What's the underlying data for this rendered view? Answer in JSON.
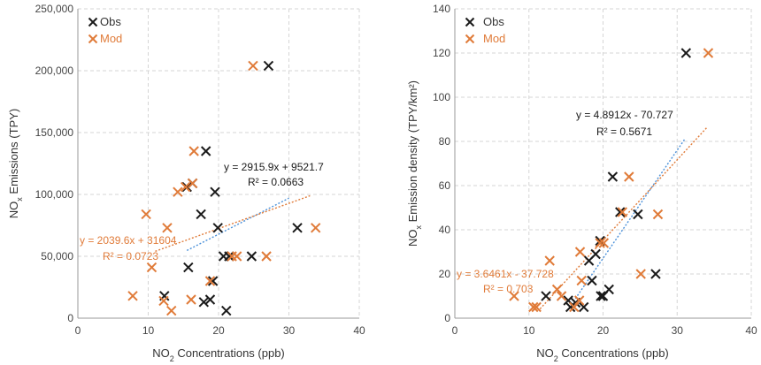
{
  "chart_data": [
    {
      "type": "scatter",
      "xlabel": {
        "pre": "NO",
        "sub": "2",
        "post": " Concentrations (ppb)"
      },
      "ylabel": {
        "pre": "NO",
        "sub": "x",
        "post": " Emissions (TPY)"
      },
      "xlim": [
        0,
        40
      ],
      "ylim": [
        0,
        250000
      ],
      "xticks": [
        0,
        10,
        20,
        30,
        40
      ],
      "xtick_labels": [
        "0",
        "10",
        "20",
        "30",
        "40"
      ],
      "yticks": [
        0,
        50000,
        100000,
        150000,
        200000,
        250000
      ],
      "ytick_labels": [
        "0",
        "50,000",
        "100,000",
        "150,000",
        "200,000",
        "250,000"
      ],
      "grid": true,
      "legend_position": "top-left",
      "series": [
        {
          "name": "Obs",
          "color": "#1a1a1a",
          "marker": "x",
          "points": [
            [
              12.3,
              18000
            ],
            [
              15.5,
              106000
            ],
            [
              15.7,
              41000
            ],
            [
              16.3,
              109000
            ],
            [
              17.5,
              84000
            ],
            [
              17.9,
              13000
            ],
            [
              18.2,
              135000
            ],
            [
              18.8,
              15000
            ],
            [
              19.2,
              30000
            ],
            [
              19.5,
              102000
            ],
            [
              19.9,
              73000
            ],
            [
              20.7,
              50000
            ],
            [
              21.1,
              6000
            ],
            [
              21.5,
              50000
            ],
            [
              24.7,
              50000
            ],
            [
              27.1,
              204000
            ],
            [
              31.2,
              73000
            ]
          ],
          "trendline": {
            "slope": 2915.9,
            "intercept": 9521.7,
            "x_range": [
              15.5,
              30
            ],
            "equation": "y = 2915.9x + 9521.7",
            "r2": "R² = 0.0663"
          }
        },
        {
          "name": "Mod",
          "color": "#e07b39",
          "marker": "x",
          "points": [
            [
              7.8,
              18000
            ],
            [
              9.7,
              84000
            ],
            [
              10.5,
              41000
            ],
            [
              12.2,
              14000
            ],
            [
              12.7,
              73000
            ],
            [
              13.3,
              6000
            ],
            [
              14.2,
              102000
            ],
            [
              15.3,
              106000
            ],
            [
              16.1,
              15000
            ],
            [
              16.3,
              109000
            ],
            [
              16.5,
              135000
            ],
            [
              18.8,
              30000
            ],
            [
              21.9,
              50000
            ],
            [
              22.6,
              50000
            ],
            [
              24.9,
              204000
            ],
            [
              26.8,
              50000
            ],
            [
              33.8,
              73000
            ]
          ],
          "trendline": {
            "slope": 2039.6,
            "intercept": 31604,
            "x_range": [
              11,
              33
            ],
            "equation": "y = 2039.6x + 31604",
            "r2": "R² = 0.0723"
          }
        }
      ]
    },
    {
      "type": "scatter",
      "xlabel": {
        "pre": "NO",
        "sub": "2",
        "post": " Concentrations (ppb)"
      },
      "ylabel": {
        "pre": "NO",
        "sub": "x",
        "post": " Emission density (TPY/km²)"
      },
      "xlim": [
        0,
        40
      ],
      "ylim": [
        0,
        140
      ],
      "xticks": [
        0,
        10,
        20,
        30,
        40
      ],
      "xtick_labels": [
        "0",
        "10",
        "20",
        "30",
        "40"
      ],
      "yticks": [
        0,
        20,
        40,
        60,
        80,
        100,
        120,
        140
      ],
      "ytick_labels": [
        "0",
        "20",
        "40",
        "60",
        "80",
        "100",
        "120",
        "140"
      ],
      "grid": true,
      "legend_position": "top-left",
      "series": [
        {
          "name": "Obs",
          "color": "#1a1a1a",
          "marker": "x",
          "points": [
            [
              12.3,
              10
            ],
            [
              15.3,
              8
            ],
            [
              15.6,
              5
            ],
            [
              16.3,
              7
            ],
            [
              17.4,
              5
            ],
            [
              18.1,
              26
            ],
            [
              18.5,
              17
            ],
            [
              19.0,
              29
            ],
            [
              19.6,
              35
            ],
            [
              19.7,
              10
            ],
            [
              20.0,
              10
            ],
            [
              20.8,
              13
            ],
            [
              21.3,
              64
            ],
            [
              22.3,
              48
            ],
            [
              24.7,
              47
            ],
            [
              27.1,
              20
            ],
            [
              31.2,
              120
            ]
          ],
          "trendline": {
            "slope": 4.8912,
            "intercept": -70.727,
            "x_range": [
              16,
              31
            ],
            "equation": "y = 4.8912x - 70.727",
            "r2": "R² = 0.5671"
          }
        },
        {
          "name": "Mod",
          "color": "#e07b39",
          "marker": "x",
          "points": [
            [
              8.0,
              10
            ],
            [
              10.6,
              5
            ],
            [
              11.0,
              5
            ],
            [
              12.8,
              26
            ],
            [
              13.8,
              13
            ],
            [
              14.4,
              10
            ],
            [
              16.1,
              5
            ],
            [
              16.8,
              8
            ],
            [
              16.9,
              30
            ],
            [
              17.1,
              17
            ],
            [
              19.6,
              34
            ],
            [
              20.1,
              34
            ],
            [
              22.6,
              48
            ],
            [
              23.5,
              64
            ],
            [
              25.1,
              20
            ],
            [
              27.4,
              47
            ],
            [
              34.2,
              120
            ]
          ],
          "trendline": {
            "slope": 3.6461,
            "intercept": -37.728,
            "x_range": [
              11.5,
              34
            ],
            "equation": "y = 3.6461x - 37.728",
            "r2": "R² = 0.703"
          }
        }
      ]
    }
  ]
}
